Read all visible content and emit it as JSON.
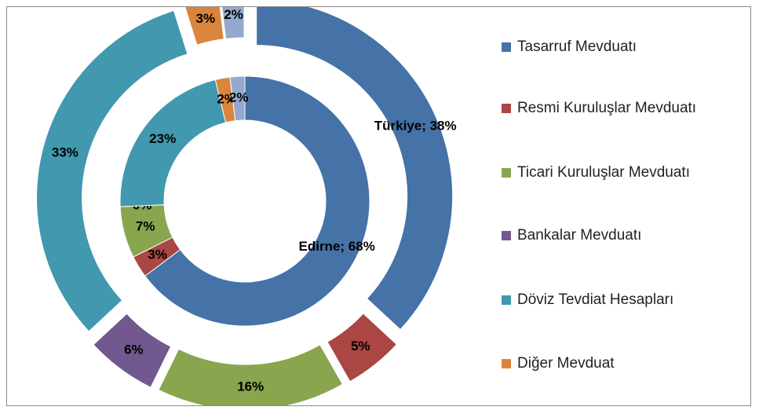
{
  "chart_data": {
    "type": "doughnut",
    "categories": [
      "Tasarruf Mevduatı",
      "Resmi Kuruluşlar Mevduatı",
      "Ticari Kuruluşlar Mevduatı",
      "Bankalar Mevduatı",
      "Döviz Tevdiat Hesapları",
      "Diğer Mevduat",
      null
    ],
    "colors": [
      "#4572a7",
      "#aa4643",
      "#89a54e",
      "#71588f",
      "#4198af",
      "#db843d",
      "#93a9cf"
    ],
    "series": [
      {
        "values": [
          68,
          3,
          7,
          0,
          23,
          2,
          2
        ],
        "value_labels": [
          "Edirne; 68%",
          "3%",
          "7%",
          "0%",
          "23%",
          "2%",
          "2%"
        ]
      },
      {
        "values": [
          38,
          5,
          16,
          6,
          33,
          3,
          2
        ],
        "value_labels": [
          "Türkiye; 38%",
          "5%",
          "16%",
          "6%",
          "33%",
          "3%",
          "2%"
        ]
      }
    ],
    "legend": "right"
  }
}
